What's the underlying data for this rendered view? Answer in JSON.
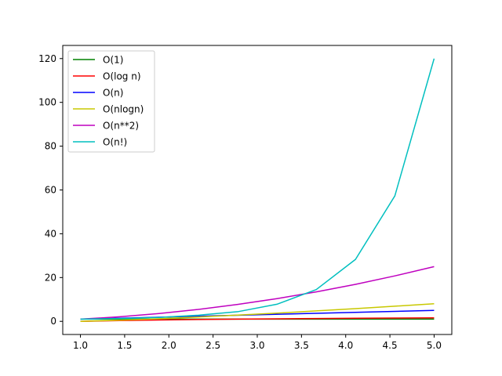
{
  "chart_data": {
    "type": "line",
    "title": "",
    "xlabel": "",
    "ylabel": "",
    "xlim": [
      0.8,
      5.2
    ],
    "ylim": [
      -6,
      126
    ],
    "xticks": [
      "1.0",
      "1.5",
      "2.0",
      "2.5",
      "3.0",
      "3.5",
      "4.0",
      "4.5",
      "5.0"
    ],
    "yticks": [
      "0",
      "20",
      "40",
      "60",
      "80",
      "100",
      "120"
    ],
    "grid": false,
    "legend_position": "top-left",
    "series": [
      {
        "name": "O(1)",
        "color": "#008000",
        "x": [
          1.0,
          5.0
        ],
        "y": [
          1,
          1
        ]
      },
      {
        "name": "O(log n)",
        "color": "#ff0000",
        "x": [
          1.0,
          1.444,
          1.889,
          2.333,
          2.778,
          3.222,
          3.667,
          4.111,
          4.556,
          5.0
        ],
        "y": [
          0,
          0.37,
          0.64,
          0.85,
          1.02,
          1.17,
          1.3,
          1.41,
          1.52,
          1.61
        ]
      },
      {
        "name": "O(n)",
        "color": "#0000ff",
        "x": [
          1.0,
          5.0
        ],
        "y": [
          1,
          5
        ]
      },
      {
        "name": "O(nlogn)",
        "color": "#c8c800",
        "x": [
          1.0,
          1.444,
          1.889,
          2.333,
          2.778,
          3.222,
          3.667,
          4.111,
          4.556,
          5.0
        ],
        "y": [
          0,
          0.53,
          1.2,
          1.98,
          2.84,
          3.77,
          4.76,
          5.81,
          6.91,
          8.05
        ]
      },
      {
        "name": "O(n**2)",
        "color": "#bf00bf",
        "x": [
          1.0,
          1.444,
          1.889,
          2.333,
          2.778,
          3.222,
          3.667,
          4.111,
          4.556,
          5.0
        ],
        "y": [
          1,
          2.09,
          3.57,
          5.44,
          7.72,
          10.38,
          13.45,
          16.9,
          20.76,
          25
        ]
      },
      {
        "name": "O(n!)",
        "color": "#00bfbf",
        "x": [
          1.0,
          1.444,
          1.889,
          2.333,
          2.778,
          3.222,
          3.667,
          4.111,
          4.556,
          5.0
        ],
        "y": [
          1,
          1.3,
          1.8,
          2.8,
          4.4,
          7.8,
          14.5,
          28.3,
          57.3,
          120
        ]
      }
    ]
  }
}
